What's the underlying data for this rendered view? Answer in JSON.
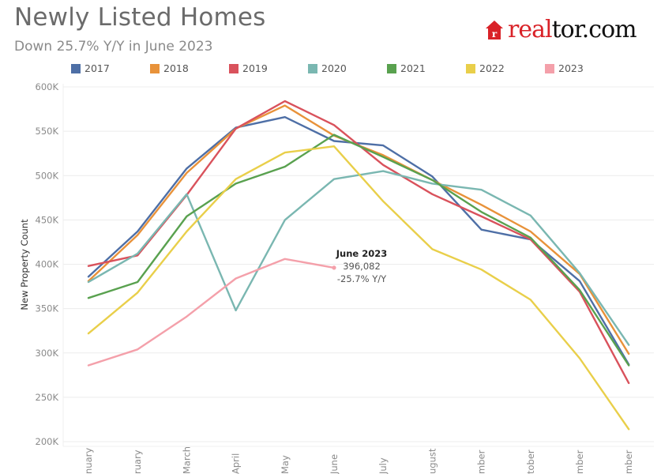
{
  "header": {
    "title": "Newly Listed Homes",
    "subtitle": "Down 25.7% Y/Y in June 2023",
    "logo_real": "real",
    "logo_tor": "tor.com"
  },
  "colors": {
    "2017": "#4e6fa6",
    "2018": "#e8923a",
    "2019": "#d9525c",
    "2020": "#7ab7b1",
    "2021": "#59a14f",
    "2022": "#e9cf4a",
    "2023": "#f4a0aa",
    "grid": "#ececec",
    "axis_text": "#8a8a8a",
    "brand_red": "#d92228"
  },
  "chart_data": {
    "type": "line",
    "title": "Newly Listed Homes",
    "subtitle": "Down 25.7% Y/Y in June 2023",
    "xlabel": "",
    "ylabel": "New Property Count",
    "ylim": [
      200000,
      600000
    ],
    "yticks": [
      200000,
      250000,
      300000,
      350000,
      400000,
      450000,
      500000,
      550000,
      600000
    ],
    "ytick_labels": [
      "200K",
      "250K",
      "300K",
      "350K",
      "400K",
      "450K",
      "500K",
      "550K",
      "600K"
    ],
    "categories": [
      "January",
      "February",
      "March",
      "April",
      "May",
      "June",
      "July",
      "August",
      "September",
      "October",
      "November",
      "December"
    ],
    "category_labels_visible": [
      "nuary",
      "ruary",
      "March",
      "April",
      "May",
      "June",
      "July",
      "ugust",
      "mber",
      "tober",
      "mber",
      "mber"
    ],
    "grid": true,
    "legend_position": "top",
    "series": [
      {
        "name": "2017",
        "values": [
          386000,
          437000,
          508000,
          554000,
          566000,
          539000,
          534000,
          499000,
          439000,
          428000,
          381000,
          287000
        ]
      },
      {
        "name": "2018",
        "values": [
          381000,
          433000,
          503000,
          553000,
          579000,
          545000,
          523000,
          495000,
          467000,
          437000,
          389000,
          299000
        ]
      },
      {
        "name": "2019",
        "values": [
          398000,
          410000,
          478000,
          553000,
          584000,
          557000,
          512000,
          479000,
          454000,
          428000,
          369000,
          266000
        ]
      },
      {
        "name": "2020",
        "values": [
          380000,
          412000,
          479000,
          348000,
          450000,
          496000,
          505000,
          491000,
          484000,
          455000,
          390000,
          309000
        ]
      },
      {
        "name": "2021",
        "values": [
          362000,
          380000,
          454000,
          491000,
          510000,
          546000,
          521000,
          495000,
          459000,
          430000,
          371000,
          286000
        ]
      },
      {
        "name": "2022",
        "values": [
          322000,
          368000,
          437000,
          496000,
          526000,
          533000,
          471000,
          417000,
          394000,
          360000,
          294000,
          214000
        ]
      },
      {
        "name": "2023",
        "values": [
          286000,
          304000,
          341000,
          384000,
          406000,
          396082
        ]
      }
    ],
    "annotation": {
      "series": "2023",
      "category": "June",
      "line1": "June 2023",
      "line2": "396,082",
      "line3": "-25.7% Y/Y"
    }
  }
}
